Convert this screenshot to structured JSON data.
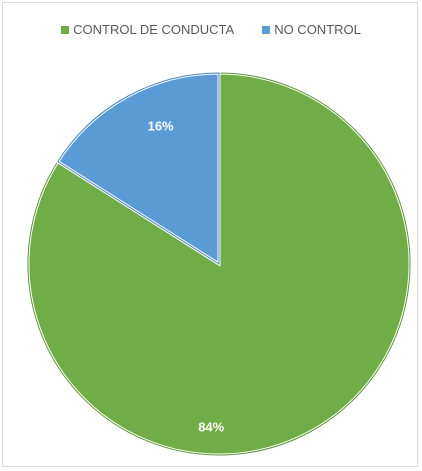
{
  "chart_data": {
    "type": "pie",
    "categories": [
      "CONTROL DE CONDUCTA",
      "NO CONTROL"
    ],
    "values": [
      84,
      16
    ],
    "data_labels": [
      "84%",
      "16%"
    ],
    "colors": [
      "#70ad47",
      "#5b9bd5"
    ],
    "slice_border_colors": [
      "#5e9638",
      "#4a86bf"
    ],
    "legend_position": "top",
    "start_angle": "12 o'clock, clockwise"
  }
}
